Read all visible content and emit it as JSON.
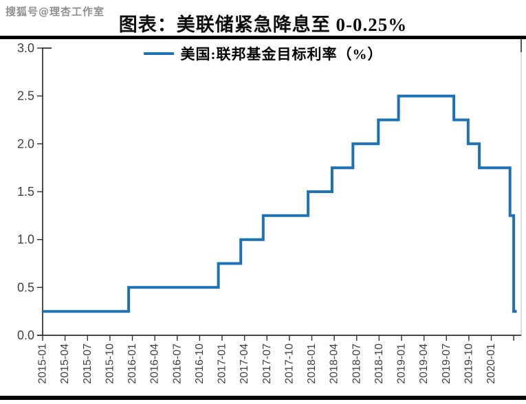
{
  "watermark": "搜狐号@理杏工作室",
  "title": "图表：美联储紧急降息至 0-0.25%",
  "legend": {
    "label": "美国:联邦基金目标利率（%）"
  },
  "colors": {
    "line_blue": "#1c72b4",
    "axis_dark": "#2e2e2e",
    "tick_label": "#404040",
    "right_spine": "#c9c9c9",
    "rule_black": "#000000",
    "watermark_gray": "#8f8f8f"
  },
  "chart_data": {
    "type": "line",
    "subtype": "step",
    "title": "图表：美联储紧急降息至 0-0.25%",
    "series_name": "美国:联邦基金目标利率（%）",
    "xlabel": "",
    "ylabel": "",
    "ylim": [
      0.0,
      3.0
    ],
    "y_tick_labels": [
      "3.0",
      "2.5",
      "2.0",
      "1.5",
      "1.0",
      "0.5",
      "0.0"
    ],
    "y_tick_values": [
      3.0,
      2.5,
      2.0,
      1.5,
      1.0,
      0.5,
      0.0
    ],
    "x_tick_labels": [
      "2015-01",
      "2015-04",
      "2015-07",
      "2015-10",
      "2016-01",
      "2016-04",
      "2016-07",
      "2016-10",
      "2017-01",
      "2017-04",
      "2017-07",
      "2017-10",
      "2018-01",
      "2018-04",
      "2018-07",
      "2018-10",
      "2019-01",
      "2019-04",
      "2019-07",
      "2019-10",
      "2020-01"
    ],
    "x_tick_interval_months": 3,
    "x_axis_span_months": 64,
    "grid": false,
    "legend_position": "top-center",
    "steps": [
      {
        "date": "2015-01",
        "m": 0.0,
        "rate": 0.25
      },
      {
        "date": "2015-12",
        "m": 11.5,
        "rate": 0.5
      },
      {
        "date": "2016-12",
        "m": 23.5,
        "rate": 0.75
      },
      {
        "date": "2017-03",
        "m": 26.5,
        "rate": 1.0
      },
      {
        "date": "2017-06",
        "m": 29.5,
        "rate": 1.25
      },
      {
        "date": "2017-12",
        "m": 35.5,
        "rate": 1.5
      },
      {
        "date": "2018-03",
        "m": 38.7,
        "rate": 1.75
      },
      {
        "date": "2018-06",
        "m": 41.5,
        "rate": 2.0
      },
      {
        "date": "2018-09",
        "m": 44.9,
        "rate": 2.25
      },
      {
        "date": "2018-12",
        "m": 47.6,
        "rate": 2.5
      },
      {
        "date": "2019-08",
        "m": 55.0,
        "rate": 2.25
      },
      {
        "date": "2019-09",
        "m": 56.9,
        "rate": 2.0
      },
      {
        "date": "2019-10",
        "m": 58.4,
        "rate": 1.75
      },
      {
        "date": "2020-03",
        "m": 62.5,
        "rate": 1.25
      },
      {
        "date": "2020-03",
        "m": 63.0,
        "rate": 0.25
      }
    ],
    "end_m": 63.4
  }
}
